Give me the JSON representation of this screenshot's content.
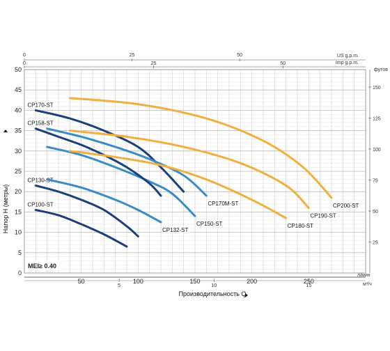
{
  "chart_data": {
    "type": "line",
    "xlabel": "Производительность Q",
    "ylabel": "Напор H (метры)",
    "unit_flow_main": "л/мин",
    "unit_flow_m3": "м³/ч",
    "unit_us": "US g.p.m.",
    "unit_imp": "Imp g.p.m.",
    "unit_feet": "футов",
    "mei_label": "MEI≥ 0.40",
    "xlim": [
      0,
      300
    ],
    "ylim": [
      0,
      50
    ],
    "x_ticks": [
      50,
      100,
      150,
      200,
      250
    ],
    "y_ticks": [
      0,
      5,
      10,
      15,
      20,
      25,
      30,
      35,
      40,
      45,
      50
    ],
    "m3h_ticks": [
      5,
      10,
      15
    ],
    "us_gpm_ticks": [
      0,
      25,
      50
    ],
    "imp_gpm_ticks": [
      0,
      25,
      50
    ],
    "feet_ticks": [
      25,
      50,
      75,
      100,
      125,
      150
    ],
    "series": [
      {
        "name": "CP100-ST",
        "color": "#1b3f78",
        "label_pos": "start",
        "x": [
          10,
          30,
          50,
          70,
          90
        ],
        "y": [
          15.5,
          14.2,
          12.0,
          9.5,
          6.5
        ]
      },
      {
        "name": "CP130-ST",
        "color": "#1b3f78",
        "label_pos": "start",
        "x": [
          10,
          30,
          50,
          70,
          90,
          100
        ],
        "y": [
          21.5,
          20.0,
          18.0,
          15.5,
          11.5,
          9.0
        ]
      },
      {
        "name": "CP132-ST",
        "color": "#3a8cc8",
        "label_pos": "end",
        "x": [
          20,
          50,
          80,
          100,
          120
        ],
        "y": [
          23.0,
          21.0,
          18.0,
          15.5,
          12.5
        ]
      },
      {
        "name": "CP150-ST",
        "color": "#3a8cc8",
        "label_pos": "end",
        "x": [
          20,
          50,
          80,
          110,
          130,
          150
        ],
        "y": [
          31.0,
          29.0,
          26.0,
          22.5,
          19.5,
          14.0
        ]
      },
      {
        "name": "CP158-ST",
        "color": "#1b3f78",
        "label_pos": "start",
        "x": [
          10,
          30,
          50,
          70,
          90,
          110,
          120
        ],
        "y": [
          35.5,
          33.5,
          31.5,
          29.0,
          26.0,
          22.0,
          19.0
        ]
      },
      {
        "name": "CP170-ST",
        "color": "#1b3f78",
        "label_pos": "start",
        "x": [
          10,
          40,
          70,
          100,
          120,
          140
        ],
        "y": [
          40.0,
          38.0,
          35.0,
          31.0,
          26.0,
          20.0
        ]
      },
      {
        "name": "CP170M-ST",
        "color": "#3a8cc8",
        "label_pos": "end",
        "x": [
          20,
          50,
          80,
          110,
          140,
          160
        ],
        "y": [
          35.5,
          33.5,
          31.0,
          28.0,
          24.0,
          19.0
        ]
      },
      {
        "name": "CP180-ST",
        "color": "#f0b040",
        "label_pos": "end",
        "x": [
          40,
          80,
          120,
          160,
          200,
          230
        ],
        "y": [
          30.0,
          28.5,
          26.5,
          23.0,
          18.0,
          13.5
        ]
      },
      {
        "name": "CP190-ST",
        "color": "#f0b040",
        "label_pos": "end",
        "x": [
          40,
          90,
          140,
          190,
          230,
          250
        ],
        "y": [
          35.0,
          33.5,
          31.0,
          27.0,
          21.5,
          16.0
        ]
      },
      {
        "name": "CP200-ST",
        "color": "#f0b040",
        "label_pos": "end",
        "x": [
          40,
          100,
          160,
          210,
          245,
          270
        ],
        "y": [
          43.0,
          41.5,
          38.0,
          32.5,
          26.0,
          18.5
        ]
      }
    ]
  }
}
